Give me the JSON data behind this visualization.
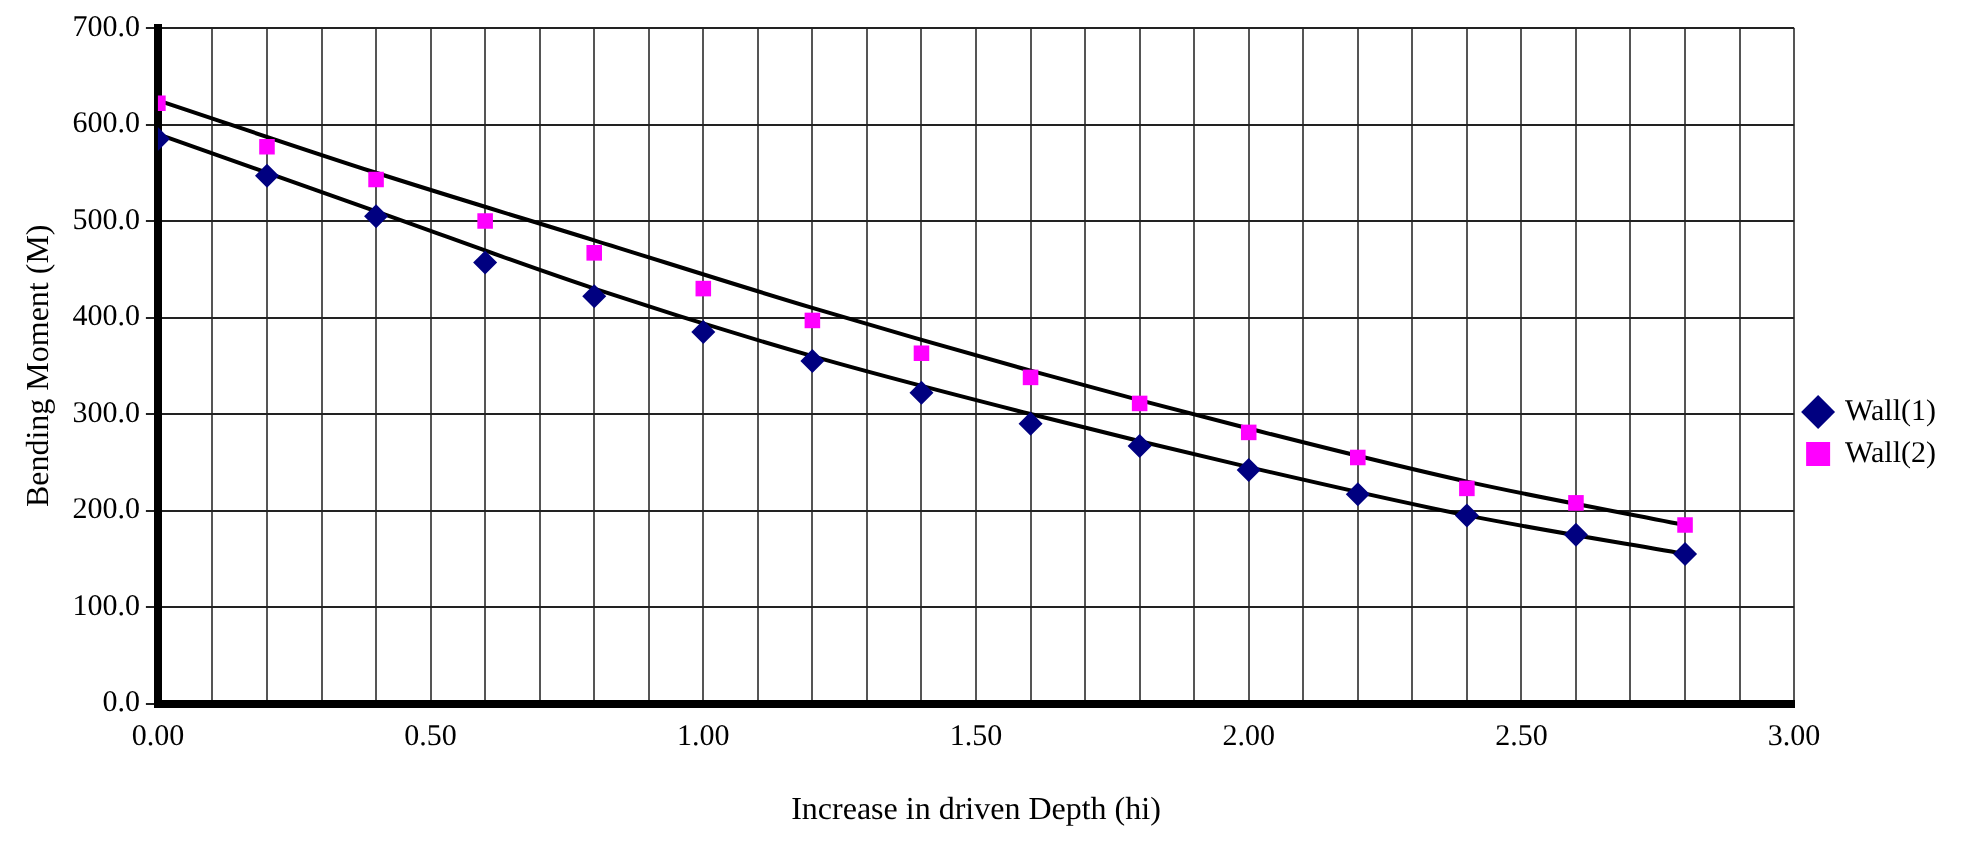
{
  "chart_data": {
    "type": "scatter",
    "xlabel": "Increase in driven Depth (hi)",
    "ylabel": "Bending Moment (M)",
    "xlim": [
      0,
      3
    ],
    "ylim": [
      0,
      700
    ],
    "xticks": [
      {
        "value": 0,
        "label": "0.00"
      },
      {
        "value": 0.1,
        "label": null
      },
      {
        "value": 0.2,
        "label": null
      },
      {
        "value": 0.3,
        "label": null
      },
      {
        "value": 0.4,
        "label": null
      },
      {
        "value": 0.5,
        "label": "0.50"
      },
      {
        "value": 0.6,
        "label": null
      },
      {
        "value": 0.7,
        "label": null
      },
      {
        "value": 0.8,
        "label": null
      },
      {
        "value": 0.9,
        "label": null
      },
      {
        "value": 1,
        "label": "1.00"
      },
      {
        "value": 1.1,
        "label": null
      },
      {
        "value": 1.2,
        "label": null
      },
      {
        "value": 1.3,
        "label": null
      },
      {
        "value": 1.4,
        "label": null
      },
      {
        "value": 1.5,
        "label": "1.50"
      },
      {
        "value": 1.6,
        "label": null
      },
      {
        "value": 1.7,
        "label": null
      },
      {
        "value": 1.8,
        "label": null
      },
      {
        "value": 1.9,
        "label": null
      },
      {
        "value": 2,
        "label": "2.00"
      },
      {
        "value": 2.1,
        "label": null
      },
      {
        "value": 2.2,
        "label": null
      },
      {
        "value": 2.3,
        "label": null
      },
      {
        "value": 2.4,
        "label": null
      },
      {
        "value": 2.5,
        "label": "2.50"
      },
      {
        "value": 2.6,
        "label": null
      },
      {
        "value": 2.7,
        "label": null
      },
      {
        "value": 2.8,
        "label": null
      },
      {
        "value": 2.9,
        "label": null
      },
      {
        "value": 3,
        "label": "3.00"
      }
    ],
    "yticks": [
      {
        "value": 0,
        "label": "0.0"
      },
      {
        "value": 100,
        "label": "100.0"
      },
      {
        "value": 200,
        "label": "200.0"
      },
      {
        "value": 300,
        "label": "300.0"
      },
      {
        "value": 400,
        "label": "400.0"
      },
      {
        "value": 500,
        "label": "500.0"
      },
      {
        "value": 600,
        "label": "600.0"
      },
      {
        "value": 700,
        "label": "700.0"
      }
    ],
    "grid": true,
    "legend": "right",
    "x": [
      0,
      0.2,
      0.4,
      0.6,
      0.8,
      1.0,
      1.2,
      1.4,
      1.6,
      1.8,
      2.0,
      2.2,
      2.4,
      2.6,
      2.8
    ],
    "series": [
      {
        "name": "Wall(1)",
        "color": "#000080",
        "marker": "diamond",
        "values": [
          585,
          547,
          505,
          457,
          422,
          385,
          355,
          322,
          290,
          267,
          242,
          217,
          195,
          175,
          155
        ]
      },
      {
        "name": "Wall(2)",
        "color": "#ff00ff",
        "marker": "square",
        "values": [
          622,
          577,
          543,
          500,
          467,
          430,
          397,
          363,
          338,
          311,
          281,
          255,
          223,
          208,
          185
        ]
      },
      {
        "type": "line",
        "color": "#000000",
        "marker": "none",
        "x": [
          0,
          0.4,
          0.8,
          1.2,
          1.6,
          2.0,
          2.4,
          2.8
        ],
        "values": [
          590,
          510,
          430,
          360,
          300,
          245,
          195,
          155
        ]
      },
      {
        "type": "line",
        "color": "#000000",
        "marker": "none",
        "x": [
          0,
          0.4,
          0.8,
          1.2,
          1.6,
          2.0,
          2.4,
          2.8
        ],
        "values": [
          625,
          550,
          480,
          410,
          345,
          285,
          230,
          185
        ]
      }
    ]
  }
}
